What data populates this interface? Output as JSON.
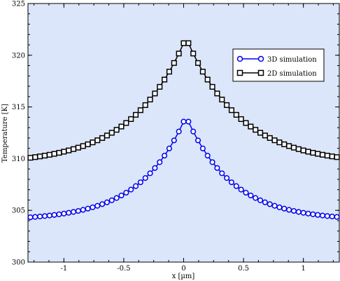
{
  "chart_data": {
    "type": "line",
    "xlabel": "x [µm]",
    "ylabel": "Temperature [K]",
    "xlim": [
      -1.3,
      1.3
    ],
    "ylim": [
      300,
      325
    ],
    "xticks": [
      -1,
      -0.5,
      0,
      0.5,
      1
    ],
    "xtick_labels": [
      "-1",
      "-0.5",
      "0",
      "0.5",
      "1"
    ],
    "yticks": [
      300,
      305,
      310,
      315,
      320,
      325
    ],
    "ytick_labels": [
      "300",
      "305",
      "310",
      "315",
      "320",
      "325"
    ],
    "grid": false,
    "legend_position": "top-right",
    "background_color": "#dbe6fa",
    "series": [
      {
        "name": "3D simulation",
        "marker": "circle",
        "color": "#0000ee",
        "peak_x": 0.02,
        "base": 304.0,
        "amplitude": 10.1,
        "decay": 0.38
      },
      {
        "name": "2D simulation",
        "marker": "square",
        "color": "#000000",
        "peak_x": 0.02,
        "base": 309.4,
        "amplitude": 12.3,
        "decay": 0.45
      }
    ],
    "x_start": -1.28,
    "x_end": 1.28,
    "x_step": 0.04
  }
}
